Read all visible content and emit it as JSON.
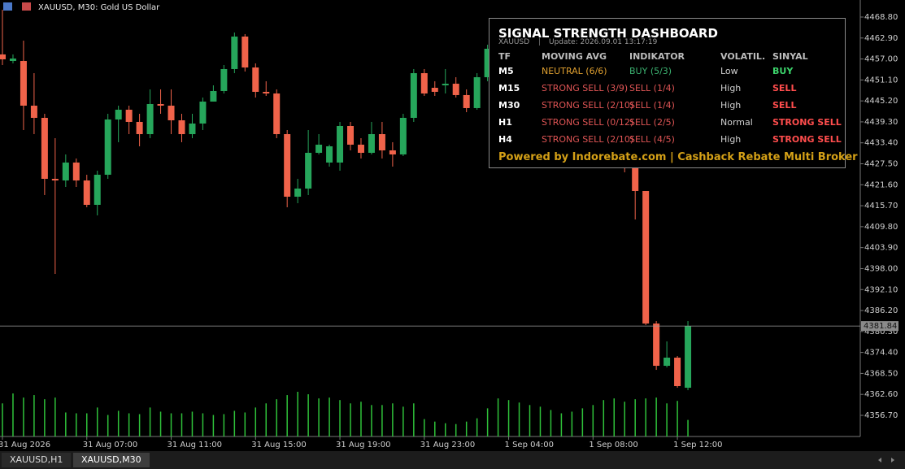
{
  "chart_data": {
    "type": "candlestick",
    "title": "XAUUSD, M30:  Gold US Dollar",
    "categories": [
      "31 Aug 2026",
      null,
      null,
      null,
      null,
      null,
      null,
      null,
      "31 Aug 07:00",
      null,
      null,
      null,
      null,
      null,
      null,
      null,
      "31 Aug 11:00",
      null,
      null,
      null,
      null,
      null,
      null,
      null,
      "31 Aug 15:00",
      null,
      null,
      null,
      null,
      null,
      null,
      null,
      "31 Aug 19:00",
      null,
      null,
      null,
      null,
      null,
      null,
      null,
      "31 Aug 23:00",
      null,
      null,
      null,
      null,
      null,
      null,
      null,
      "1 Sep 04:00",
      null,
      null,
      null,
      null,
      null,
      null,
      null,
      "1 Sep 08:00",
      null,
      null,
      null,
      null,
      null,
      null,
      null,
      "1 Sep 12:00",
      null
    ],
    "open": [
      4458.28,
      4456.44,
      4456.44,
      4443.86,
      4440.43,
      4423.27,
      4422.81,
      4427.85,
      4422.81,
      4415.95,
      4424.42,
      4439.97,
      4442.72,
      4439.29,
      4435.85,
      4444.32,
      4443.86,
      4439.74,
      4435.85,
      4438.83,
      4445.01,
      4447.98,
      4454.16,
      4463.31,
      4454.61,
      4447.75,
      4447.29,
      4435.85,
      4418.24,
      4420.53,
      4430.59,
      4427.85,
      4427.85,
      4438.14,
      4432.88,
      4430.59,
      4435.85,
      4431.28,
      4430.13,
      4440.43,
      4453.01,
      4448.89,
      4449.58,
      4450.04,
      4446.84,
      4443.18,
      4451.87,
      null,
      null,
      null,
      null,
      null,
      null,
      null,
      null,
      null,
      null,
      null,
      null,
      4428.99,
      4426.25,
      4419.84,
      4382.54,
      4370.65,
      4372.94,
      4364.47
    ],
    "high": [
      4470.86,
      4458.28,
      4462.16,
      4453.01,
      4441.57,
      4434.71,
      4430.13,
      4428.99,
      4424.42,
      4425.56,
      4441.57,
      4443.86,
      4443.86,
      4441.57,
      4448.44,
      4448.44,
      4448.44,
      4441.57,
      4441.57,
      4446.15,
      4449.58,
      4455.3,
      4464.45,
      4464.0,
      4455.76,
      4450.73,
      4448.44,
      4437.0,
      4423.27,
      4437.0,
      4435.85,
      4432.88,
      4439.29,
      4439.29,
      4434.71,
      4439.29,
      4439.29,
      4433.57,
      4441.57,
      4454.16,
      4454.16,
      4450.73,
      4454.16,
      4451.87,
      4448.44,
      4453.01,
      4461.02,
      null,
      null,
      null,
      null,
      null,
      null,
      null,
      null,
      null,
      null,
      null,
      null,
      4432.42,
      4427.85,
      4419.84,
      4383.23,
      4377.51,
      4373.4,
      4383.23
    ],
    "low": [
      4455.3,
      4455.76,
      4437.0,
      4435.85,
      4418.7,
      4396.5,
      4420.98,
      4420.98,
      4415.26,
      4412.98,
      4423.27,
      4433.57,
      4435.85,
      4432.42,
      4434.71,
      4441.57,
      4435.85,
      4433.57,
      4434.71,
      4437.0,
      4445.01,
      4447.29,
      4453.01,
      4453.47,
      4446.15,
      4446.61,
      4434.71,
      4415.26,
      4416.41,
      4418.7,
      4430.13,
      4426.71,
      4425.56,
      4431.28,
      4428.99,
      4430.13,
      4428.99,
      4426.71,
      4429.68,
      4439.29,
      4446.61,
      4446.61,
      4447.29,
      4446.15,
      4442.03,
      4442.72,
      4450.73,
      null,
      null,
      null,
      null,
      null,
      null,
      null,
      null,
      null,
      null,
      null,
      null,
      4425.1,
      4411.83,
      4382.08,
      4369.5,
      4370.19,
      4364.47,
      4363.78
    ],
    "close": [
      4456.9,
      4457.13,
      4443.86,
      4440.43,
      4423.27,
      4422.81,
      4427.85,
      4422.81,
      4415.95,
      4424.42,
      4439.97,
      4442.72,
      4439.29,
      4435.85,
      4444.32,
      4443.86,
      4439.74,
      4435.85,
      4438.83,
      4445.01,
      4447.98,
      4454.16,
      4463.31,
      4454.61,
      4447.75,
      4447.29,
      4435.85,
      4418.24,
      4420.53,
      4430.59,
      4432.88,
      4432.42,
      4438.14,
      4432.88,
      4430.59,
      4435.85,
      4431.28,
      4430.13,
      4440.43,
      4453.01,
      4447.29,
      4447.75,
      4450.04,
      4446.84,
      4443.18,
      4451.87,
      4459.88,
      null,
      null,
      null,
      null,
      null,
      null,
      null,
      null,
      null,
      null,
      null,
      null,
      4426.25,
      4419.84,
      4382.54,
      4370.65,
      4372.94,
      4364.93,
      4381.84
    ],
    "volume": [
      40,
      52,
      47,
      50,
      45,
      47,
      29,
      28,
      28,
      35,
      26,
      31,
      28,
      27,
      35,
      30,
      28,
      28,
      30,
      28,
      26,
      27,
      31,
      29,
      35,
      40,
      45,
      50,
      54,
      51,
      46,
      47,
      44,
      40,
      42,
      38,
      38,
      40,
      36,
      40,
      21,
      18,
      16,
      15,
      18,
      22,
      34,
      46,
      44,
      41,
      38,
      36,
      32,
      28,
      30,
      34,
      38,
      44,
      46,
      42,
      45,
      46,
      47,
      40,
      43,
      20
    ],
    "up_color": "#26a65b",
    "down_color": "#f0634a",
    "volume_color": "#2fc23a",
    "ylim": [
      4350.75,
      4473.6
    ],
    "yticks": [
      {
        "value": 4468.8,
        "label": "4468.80"
      },
      {
        "value": 4462.9,
        "label": "4462.90"
      },
      {
        "value": 4457.0,
        "label": "4457.00"
      },
      {
        "value": 4451.1,
        "label": "4451.10"
      },
      {
        "value": 4445.2,
        "label": "4445.20"
      },
      {
        "value": 4439.3,
        "label": "4439.30"
      },
      {
        "value": 4433.4,
        "label": "4433.40"
      },
      {
        "value": 4427.5,
        "label": "4427.50"
      },
      {
        "value": 4421.6,
        "label": "4421.60"
      },
      {
        "value": 4415.7,
        "label": "4415.70"
      },
      {
        "value": 4409.8,
        "label": "4409.80"
      },
      {
        "value": 4403.9,
        "label": "4403.90"
      },
      {
        "value": 4398.0,
        "label": "4398.00"
      },
      {
        "value": 4392.1,
        "label": "4392.10"
      },
      {
        "value": 4386.2,
        "label": "4386.20"
      },
      {
        "value": 4380.3,
        "label": "4380.30"
      },
      {
        "value": 4374.4,
        "label": "4374.40"
      },
      {
        "value": 4368.5,
        "label": "4368.50"
      },
      {
        "value": 4362.6,
        "label": "4362.60"
      },
      {
        "value": 4356.7,
        "label": "4356.70"
      }
    ],
    "current_price": 4381.84,
    "grid": false
  },
  "dashboard": {
    "title": "SIGNAL STRENGTH DASHBOARD",
    "symbol": "XAUUSD",
    "update": "Update: 2026.09.01 13:17:19",
    "columns": [
      "TF",
      "MOVING AVG",
      "INDIKATOR",
      "VOLATIL.",
      "SINYAL"
    ],
    "rows": [
      [
        "M5",
        "NEUTRAL (6/6)",
        "BUY (5/3)",
        "Low",
        "BUY"
      ],
      [
        "M15",
        "STRONG SELL (3/9)",
        "SELL (1/4)",
        "High",
        "SELL"
      ],
      [
        "M30",
        "STRONG SELL (2/10)",
        "SELL (1/4)",
        "High",
        "SELL"
      ],
      [
        "H1",
        "STRONG SELL (0/12)",
        "SELL (2/5)",
        "Normal",
        "STRONG SELL"
      ],
      [
        "H4",
        "STRONG SELL (2/10)",
        "SELL (4/5)",
        "High",
        "STRONG SELL"
      ]
    ],
    "footer": "Powered by Indorebate.com | Cashback Rebate Multi Broker"
  },
  "tabs": [
    "XAUUSD,H1",
    "XAUUSD,M30"
  ]
}
